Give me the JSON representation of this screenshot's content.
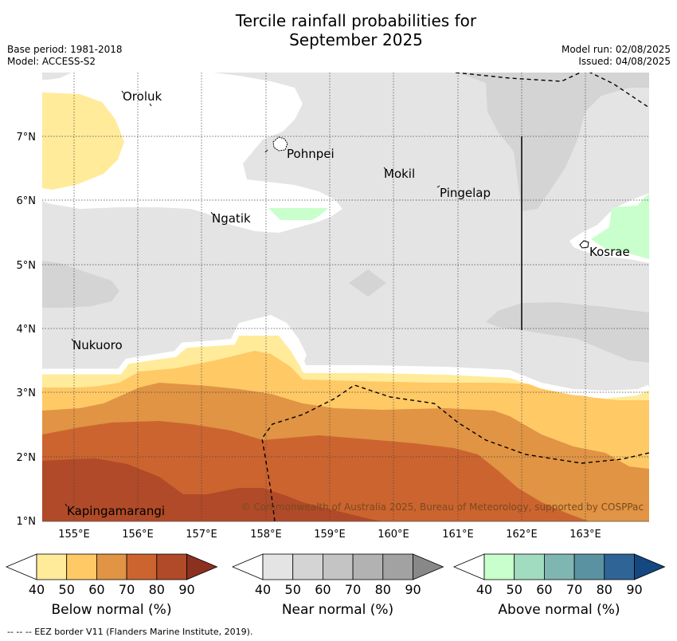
{
  "title_line1": "Tercile rainfall probabilities for",
  "title_line2": "September 2025",
  "meta": {
    "base_period": "Base period: 1981-2018",
    "model": "Model: ACCESS-S2",
    "model_run": "Model run: 02/08/2025",
    "issued": "Issued: 04/08/2025"
  },
  "places": [
    {
      "name": "Oroluk",
      "lon": 155.8,
      "lat": 7.6
    },
    {
      "name": "Pohnpei",
      "lon": 158.3,
      "lat": 6.9
    },
    {
      "name": "Mokil",
      "lon": 159.8,
      "lat": 6.4
    },
    {
      "name": "Pingelap",
      "lon": 160.7,
      "lat": 6.2
    },
    {
      "name": "Ngatik",
      "lon": 157.3,
      "lat": 5.8
    },
    {
      "name": "Kosrae",
      "lon": 163.0,
      "lat": 5.3
    },
    {
      "name": "Nukuoro",
      "lon": 154.9,
      "lat": 3.8
    },
    {
      "name": "Kapingamarangi",
      "lon": 154.9,
      "lat": 1.1
    }
  ],
  "axes": {
    "x_ticks": [
      "155°E",
      "156°E",
      "157°E",
      "158°E",
      "159°E",
      "160°E",
      "161°E",
      "162°E",
      "163°E"
    ],
    "y_ticks": [
      "1°N",
      "2°N",
      "3°N",
      "4°N",
      "5°N",
      "6°N",
      "7°N"
    ]
  },
  "copyright": "© Commonwealth of Australia 2025, Bureau of Meteorology, supported by COSPPac",
  "colorbars": [
    {
      "label": "Below normal (%)",
      "colors": [
        "#ffffff",
        "#ffeb9a",
        "#ffc966",
        "#e09444",
        "#cc6430",
        "#b04a28",
        "#8c3020"
      ]
    },
    {
      "label": "Near normal (%)",
      "colors": [
        "#ffffff",
        "#e4e4e4",
        "#d4d4d4",
        "#c4c4c4",
        "#b2b2b2",
        "#a2a2a2",
        "#888888"
      ]
    },
    {
      "label": "Above normal (%)",
      "colors": [
        "#ffffff",
        "#c8ffcc",
        "#a2dcc0",
        "#80b6b2",
        "#5a92a2",
        "#2f6496",
        "#154780"
      ]
    }
  ],
  "colorbar_ticks": [
    "40",
    "50",
    "60",
    "70",
    "80",
    "90"
  ],
  "footer": "--  --  -- EEZ border V11 (Flanders Marine Institute, 2019)."
}
